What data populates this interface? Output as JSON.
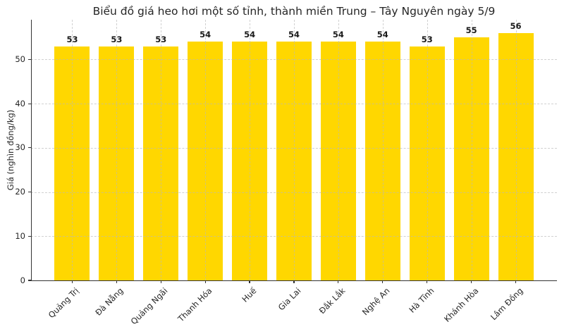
{
  "chart_data": {
    "type": "bar",
    "title": "Biểu đồ giá heo hơi một số tỉnh, thành miền Trung – Tây Nguyên ngày 5/9",
    "ylabel": "Giá (nghìn đồng/kg)",
    "xlabel": "",
    "categories": [
      "Quảng Trị",
      "Đà Nẵng",
      "Quảng Ngãi",
      "Thanh Hóa",
      "Huế",
      "Gia Lai",
      "Đắk Lắk",
      "Nghệ An",
      "Hà Tĩnh",
      "Khánh Hòa",
      "Lâm Đồng"
    ],
    "values": [
      53,
      53,
      53,
      54,
      54,
      54,
      54,
      54,
      53,
      55,
      56
    ],
    "value_labels_shown": true,
    "ylim": [
      0,
      59
    ],
    "yticks": [
      0,
      10,
      20,
      30,
      40,
      50
    ],
    "grid": "dashed horizontal and vertical gridlines, drawn over bars",
    "legend": "none",
    "colors": {
      "bar": "#FFD700",
      "grid": "#b9b9b9",
      "axis": "#333333",
      "title_text": "#262626",
      "tick_text": "#262626",
      "value_label_text": "#1a1a1a",
      "background": "#ffffff"
    }
  }
}
